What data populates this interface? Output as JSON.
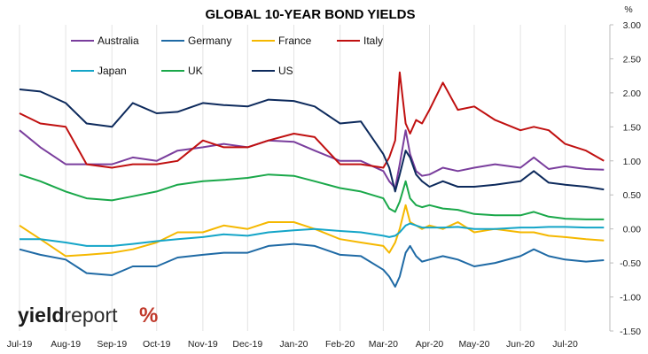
{
  "chart_data": {
    "type": "line",
    "title": "GLOBAL 10-YEAR BOND YIELDS",
    "unit_label": "%",
    "brand": {
      "text_bold": "yield",
      "text_regular": "report",
      "symbol": "%"
    },
    "ylim": [
      -1.5,
      3.0
    ],
    "y_ticks": [
      3.0,
      2.5,
      2.0,
      1.5,
      1.0,
      0.5,
      0.0,
      -0.5,
      -1.0,
      -1.5
    ],
    "y_tick_labels": [
      "3.00",
      "2.50",
      "2.00",
      "1.50",
      "1.00",
      "0.50",
      "0.00",
      "-0.50",
      "-1.00",
      "-1.50"
    ],
    "y_axis_side": "right",
    "grid": "vertical",
    "legend_position": "top",
    "x_ticks": [
      "2019-07-01",
      "2019-08-01",
      "2019-09-01",
      "2019-10-01",
      "2019-11-01",
      "2019-12-01",
      "2020-01-01",
      "2020-02-01",
      "2020-03-01",
      "2020-04-01",
      "2020-05-01",
      "2020-06-01",
      "2020-07-01"
    ],
    "x_tick_labels": [
      "Jul-19",
      "Aug-19",
      "Sep-19",
      "Oct-19",
      "Nov-19",
      "Dec-19",
      "Jan-20",
      "Feb-20",
      "Mar-20",
      "Apr-20",
      "May-20",
      "Jun-20",
      "Jul-20"
    ],
    "xlim": [
      "2019-07-01",
      "2020-07-31"
    ],
    "x": [
      "2019-07-01",
      "2019-07-15",
      "2019-08-01",
      "2019-08-15",
      "2019-09-01",
      "2019-09-15",
      "2019-10-01",
      "2019-10-15",
      "2019-11-01",
      "2019-11-15",
      "2019-12-01",
      "2019-12-15",
      "2020-01-01",
      "2020-01-15",
      "2020-02-01",
      "2020-02-15",
      "2020-03-01",
      "2020-03-05",
      "2020-03-09",
      "2020-03-12",
      "2020-03-16",
      "2020-03-19",
      "2020-03-23",
      "2020-03-27",
      "2020-04-01",
      "2020-04-10",
      "2020-04-20",
      "2020-05-01",
      "2020-05-15",
      "2020-06-01",
      "2020-06-10",
      "2020-06-20",
      "2020-07-01",
      "2020-07-15",
      "2020-07-27"
    ],
    "series": [
      {
        "name": "Australia",
        "color": "#7a3e9d",
        "values": [
          1.45,
          1.2,
          0.95,
          0.95,
          0.95,
          1.05,
          1.0,
          1.15,
          1.2,
          1.25,
          1.2,
          1.3,
          1.28,
          1.15,
          1.0,
          1.0,
          0.85,
          0.7,
          0.6,
          0.95,
          1.45,
          1.1,
          0.85,
          0.78,
          0.8,
          0.9,
          0.85,
          0.9,
          0.95,
          0.9,
          1.05,
          0.88,
          0.92,
          0.88,
          0.87
        ]
      },
      {
        "name": "Germany",
        "color": "#1f6aa5",
        "values": [
          -0.3,
          -0.38,
          -0.45,
          -0.65,
          -0.68,
          -0.55,
          -0.55,
          -0.42,
          -0.38,
          -0.35,
          -0.35,
          -0.25,
          -0.22,
          -0.25,
          -0.38,
          -0.4,
          -0.6,
          -0.7,
          -0.85,
          -0.7,
          -0.35,
          -0.25,
          -0.4,
          -0.48,
          -0.45,
          -0.4,
          -0.45,
          -0.55,
          -0.5,
          -0.4,
          -0.3,
          -0.4,
          -0.45,
          -0.48,
          -0.46
        ]
      },
      {
        "name": "France",
        "color": "#f5b800",
        "values": [
          0.05,
          -0.15,
          -0.4,
          -0.38,
          -0.35,
          -0.3,
          -0.2,
          -0.05,
          -0.05,
          0.05,
          0.0,
          0.1,
          0.1,
          0.0,
          -0.15,
          -0.2,
          -0.25,
          -0.35,
          -0.2,
          0.0,
          0.35,
          0.1,
          0.05,
          0.0,
          0.05,
          0.0,
          0.1,
          -0.05,
          0.0,
          -0.05,
          -0.05,
          -0.1,
          -0.12,
          -0.15,
          -0.17
        ]
      },
      {
        "name": "Italy",
        "color": "#c01010",
        "values": [
          1.7,
          1.55,
          1.5,
          0.95,
          0.9,
          0.95,
          0.95,
          1.0,
          1.3,
          1.2,
          1.2,
          1.3,
          1.4,
          1.35,
          0.95,
          0.95,
          0.9,
          1.05,
          1.3,
          2.3,
          1.55,
          1.4,
          1.6,
          1.55,
          1.75,
          2.15,
          1.75,
          1.8,
          1.6,
          1.45,
          1.5,
          1.45,
          1.25,
          1.15,
          1.0
        ]
      },
      {
        "name": "Japan",
        "color": "#14a5c8",
        "values": [
          -0.15,
          -0.15,
          -0.2,
          -0.25,
          -0.25,
          -0.22,
          -0.18,
          -0.15,
          -0.12,
          -0.08,
          -0.1,
          -0.05,
          -0.02,
          0.0,
          -0.03,
          -0.05,
          -0.1,
          -0.12,
          -0.1,
          -0.05,
          0.05,
          0.08,
          0.05,
          0.02,
          0.02,
          0.02,
          0.03,
          0.0,
          0.0,
          0.02,
          0.02,
          0.03,
          0.03,
          0.02,
          0.02
        ]
      },
      {
        "name": "UK",
        "color": "#1aa84a",
        "values": [
          0.8,
          0.7,
          0.55,
          0.45,
          0.42,
          0.48,
          0.55,
          0.65,
          0.7,
          0.72,
          0.75,
          0.8,
          0.78,
          0.7,
          0.6,
          0.55,
          0.45,
          0.3,
          0.25,
          0.4,
          0.7,
          0.45,
          0.35,
          0.32,
          0.35,
          0.3,
          0.28,
          0.22,
          0.2,
          0.2,
          0.25,
          0.18,
          0.15,
          0.14,
          0.14
        ]
      },
      {
        "name": "US",
        "color": "#0d2a5c",
        "values": [
          2.05,
          2.02,
          1.85,
          1.55,
          1.5,
          1.85,
          1.7,
          1.72,
          1.85,
          1.82,
          1.8,
          1.9,
          1.88,
          1.8,
          1.55,
          1.58,
          1.1,
          0.9,
          0.55,
          0.8,
          1.15,
          1.05,
          0.8,
          0.7,
          0.62,
          0.7,
          0.62,
          0.62,
          0.65,
          0.7,
          0.85,
          0.68,
          0.65,
          0.62,
          0.58
        ]
      }
    ]
  }
}
